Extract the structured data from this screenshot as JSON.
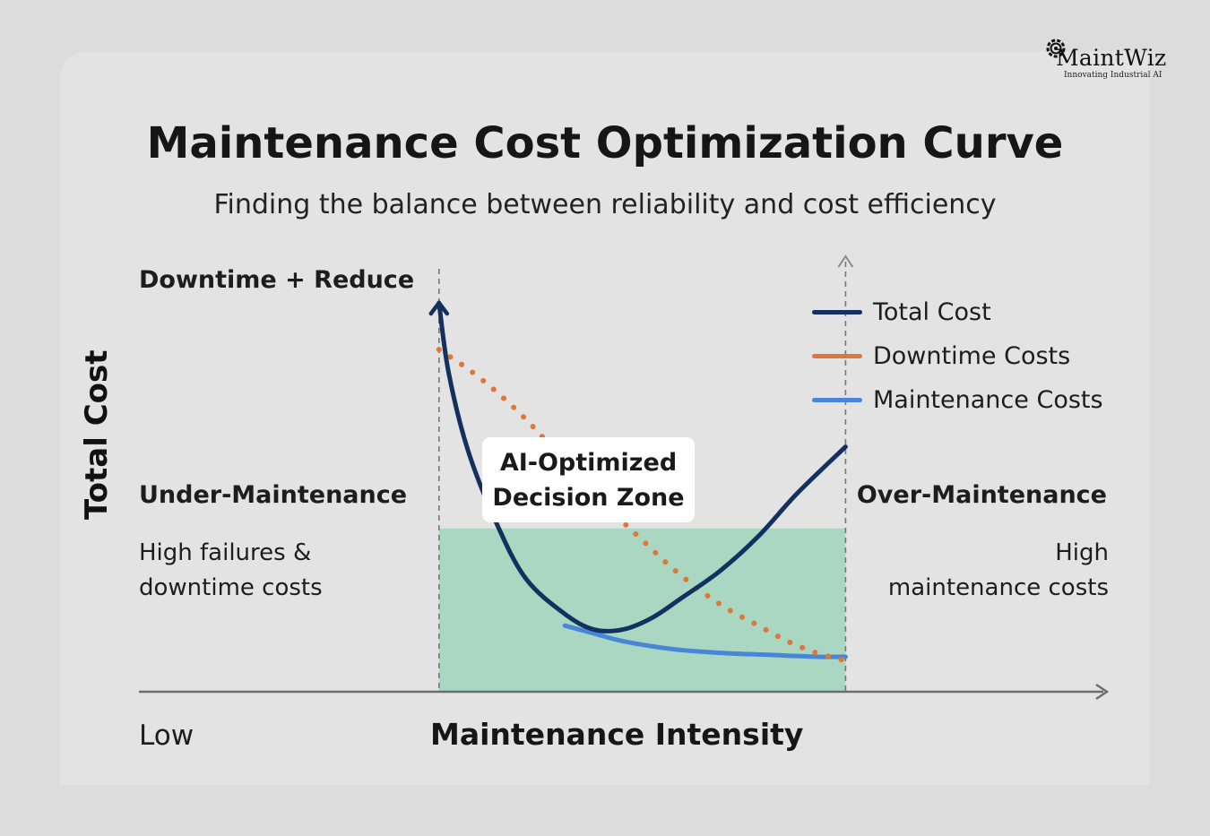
{
  "brand": {
    "name": "MaintWiz",
    "tagline": "Innovating Industrial AI"
  },
  "header": {
    "title": "Maintenance Cost Optimization Curve",
    "subtitle": "Finding the balance between reliability and cost efficiency"
  },
  "annotations": {
    "top_left": "Downtime + Reduce",
    "under_title": "Under-Maintenance",
    "under_desc_line1": "High failures &",
    "under_desc_line2": "downtime costs",
    "over_title": "Over-Maintenance",
    "over_desc_line1": "High",
    "over_desc_line2": "maintenance costs",
    "zone_line1": "AI-Optimized",
    "zone_line2": "Decision Zone",
    "x_low": "Low"
  },
  "chart_data": {
    "type": "line",
    "xlabel": "Maintenance Intensity",
    "ylabel": "Total Cost",
    "xlim": [
      0,
      1
    ],
    "ylim": [
      0,
      1
    ],
    "grid": false,
    "legend_placement": "right",
    "zone": {
      "x": [
        0.31,
        0.73
      ],
      "y_top": 0.42,
      "color": "#a9d7c2"
    },
    "guide_lines_x": [
      0.31,
      0.73
    ],
    "series": [
      {
        "name": "Total Cost",
        "color": "#14305e",
        "style": "solid",
        "x": [
          0.31,
          0.32,
          0.34,
          0.37,
          0.4,
          0.44,
          0.47,
          0.5,
          0.53,
          0.56,
          0.6,
          0.64,
          0.68,
          0.73
        ],
        "y": [
          1.0,
          0.82,
          0.62,
          0.43,
          0.29,
          0.2,
          0.16,
          0.16,
          0.19,
          0.24,
          0.31,
          0.4,
          0.51,
          0.63
        ]
      },
      {
        "name": "Downtime Costs",
        "color": "#e0773a",
        "style": "dotted",
        "x": [
          0.31,
          0.34,
          0.37,
          0.4,
          0.43,
          0.46,
          0.49,
          0.52,
          0.55,
          0.58,
          0.61,
          0.64,
          0.67,
          0.7,
          0.73
        ],
        "y": [
          0.88,
          0.83,
          0.77,
          0.7,
          0.62,
          0.54,
          0.46,
          0.39,
          0.32,
          0.26,
          0.21,
          0.17,
          0.13,
          0.1,
          0.08
        ]
      },
      {
        "name": "Maintenance Costs",
        "color": "#4a86d8",
        "style": "solid",
        "x": [
          0.44,
          0.47,
          0.5,
          0.55,
          0.6,
          0.65,
          0.7,
          0.73
        ],
        "y": [
          0.17,
          0.15,
          0.13,
          0.11,
          0.1,
          0.095,
          0.09,
          0.09
        ]
      }
    ]
  }
}
